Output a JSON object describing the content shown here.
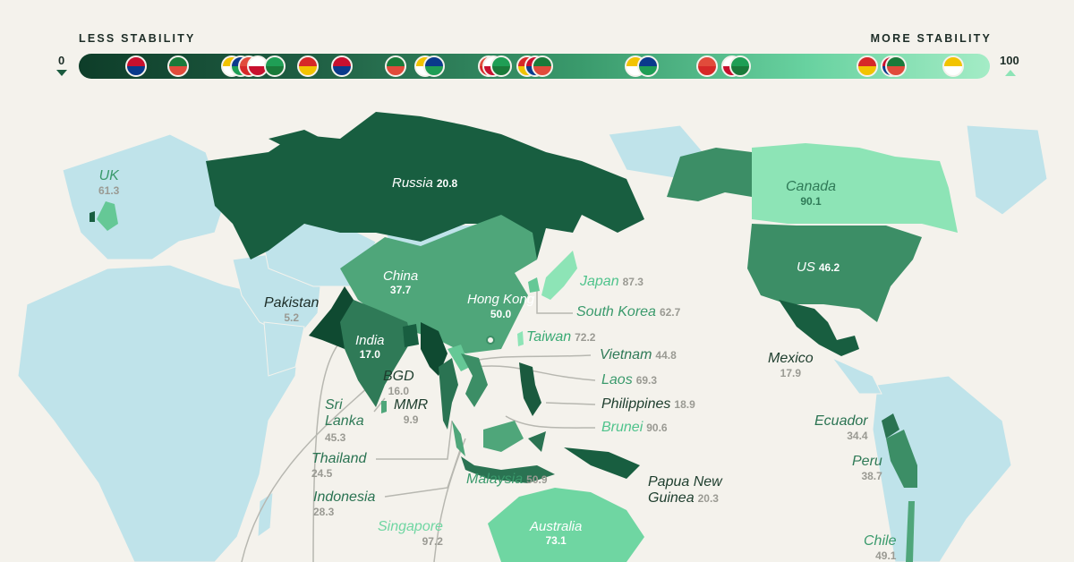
{
  "scale": {
    "left_label": "LESS STABILITY",
    "right_label": "MORE STABILITY",
    "min": "0",
    "max": "100"
  },
  "colors": {
    "background": "#f4f2ec",
    "ocean_land_other": "#bfe3ea",
    "dark": "#185e40",
    "mid": "#2f7a57",
    "light": "#4fa67a",
    "pale": "#8de4b6"
  },
  "flags": [
    {
      "country": "Pakistan",
      "score": 5.2
    },
    {
      "country": "Myanmar",
      "score": 9.9
    },
    {
      "country": "Bangladesh",
      "score": 16.0
    },
    {
      "country": "India",
      "score": 17.0
    },
    {
      "country": "Mexico",
      "score": 17.9
    },
    {
      "country": "Philippines",
      "score": 18.9
    },
    {
      "country": "Russia",
      "score": 20.8
    },
    {
      "country": "Thailand",
      "score": 24.5
    },
    {
      "country": "Indonesia",
      "score": 28.3
    },
    {
      "country": "Ecuador",
      "score": 34.4
    },
    {
      "country": "China",
      "score": 37.7
    },
    {
      "country": "Peru",
      "score": 38.7
    },
    {
      "country": "Vietnam",
      "score": 44.8
    },
    {
      "country": "Sri Lanka",
      "score": 45.3
    },
    {
      "country": "US",
      "score": 46.2
    },
    {
      "country": "Chile",
      "score": 49.1
    },
    {
      "country": "Hong Kong",
      "score": 50.0
    },
    {
      "country": "Malaysia",
      "score": 50.9
    },
    {
      "country": "UK",
      "score": 61.3
    },
    {
      "country": "South Korea",
      "score": 62.7
    },
    {
      "country": "Laos",
      "score": 69.3
    },
    {
      "country": "Taiwan",
      "score": 72.2
    },
    {
      "country": "Australia",
      "score": 73.1
    },
    {
      "country": "Japan",
      "score": 87.3
    },
    {
      "country": "Canada",
      "score": 90.1
    },
    {
      "country": "Brunei",
      "score": 90.6
    },
    {
      "country": "New Zealand",
      "score": 97.0
    }
  ],
  "labels": {
    "russia": {
      "name": "Russia",
      "value": "20.8"
    },
    "china": {
      "name": "China",
      "value": "37.7"
    },
    "hongkong": {
      "name": "Hong Kong",
      "value": "50.0"
    },
    "india": {
      "name": "India",
      "value": "17.0"
    },
    "pakistan": {
      "name": "Pakistan",
      "value": "5.2"
    },
    "uk": {
      "name": "UK",
      "value": "61.3"
    },
    "japan": {
      "name": "Japan",
      "value": "87.3"
    },
    "southkorea": {
      "name": "South Korea",
      "value": "62.7"
    },
    "taiwan": {
      "name": "Taiwan",
      "value": "72.2"
    },
    "vietnam": {
      "name": "Vietnam",
      "value": "44.8"
    },
    "laos": {
      "name": "Laos",
      "value": "69.3"
    },
    "philippines": {
      "name": "Philippines",
      "value": "18.9"
    },
    "brunei": {
      "name": "Brunei",
      "value": "90.6"
    },
    "bgd": {
      "name": "BGD",
      "value": "16.0"
    },
    "mmr": {
      "name": "MMR",
      "value": "9.9"
    },
    "srilanka": {
      "name1": "Sri",
      "name2": "Lanka",
      "value": "45.3"
    },
    "thailand": {
      "name": "Thailand",
      "value": "24.5"
    },
    "indonesia": {
      "name": "Indonesia",
      "value": "28.3"
    },
    "singapore": {
      "name": "Singapore",
      "value": "97.2"
    },
    "malaysia": {
      "name": "Malaysia",
      "value": "50.9"
    },
    "png": {
      "name1": "Papua New",
      "name2": "Guinea",
      "value": "20.3"
    },
    "australia": {
      "name": "Australia",
      "value": "73.1"
    },
    "canada": {
      "name": "Canada",
      "value": "90.1"
    },
    "us": {
      "name": "US",
      "value": "46.2"
    },
    "mexico": {
      "name": "Mexico",
      "value": "17.9"
    },
    "ecuador": {
      "name": "Ecuador",
      "value": "34.4"
    },
    "peru": {
      "name": "Peru",
      "value": "38.7"
    },
    "chile": {
      "name": "Chile",
      "value": "49.1"
    }
  }
}
